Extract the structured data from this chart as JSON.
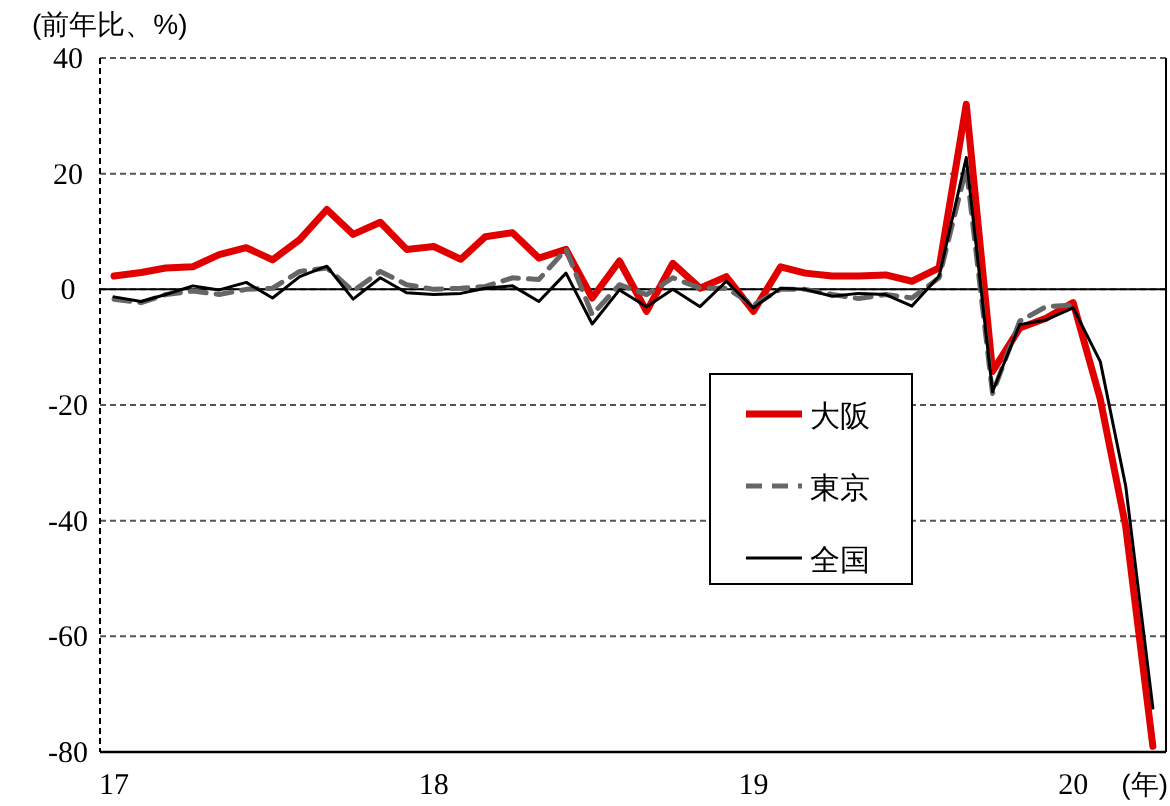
{
  "chart_data": {
    "type": "line",
    "ylabel": "(前年比、%)",
    "xlabel": "(年)",
    "x": [
      "2017-01",
      "2017-02",
      "2017-03",
      "2017-04",
      "2017-05",
      "2017-06",
      "2017-07",
      "2017-08",
      "2017-09",
      "2017-10",
      "2017-11",
      "2017-12",
      "2018-01",
      "2018-02",
      "2018-03",
      "2018-04",
      "2018-05",
      "2018-06",
      "2018-07",
      "2018-08",
      "2018-09",
      "2018-10",
      "2018-11",
      "2018-12",
      "2019-01",
      "2019-02",
      "2019-03",
      "2019-04",
      "2019-05",
      "2019-06",
      "2019-07",
      "2019-08",
      "2019-09",
      "2019-10",
      "2019-11",
      "2019-12",
      "2020-01",
      "2020-02",
      "2020-03",
      "2020-04"
    ],
    "series": [
      {
        "name": "大阪",
        "color": "#e00000",
        "line_style": "solid",
        "values": [
          2.3,
          2.9,
          3.7,
          3.9,
          6.0,
          7.2,
          5.1,
          8.6,
          13.8,
          9.5,
          11.6,
          6.9,
          7.4,
          5.2,
          9.1,
          9.8,
          5.4,
          6.9,
          -1.5,
          4.9,
          -3.8,
          4.5,
          0.2,
          2.2,
          -3.8,
          3.9,
          2.8,
          2.3,
          2.3,
          2.5,
          1.4,
          3.7,
          32.0,
          -14.2,
          -6.7,
          -5.0,
          -2.3,
          -19,
          -41,
          -79
        ]
      },
      {
        "name": "東京",
        "color": "#666666",
        "line_style": "dashed",
        "values": [
          -1.7,
          -2.3,
          -0.9,
          -0.3,
          -0.9,
          0,
          0.2,
          3.1,
          3.7,
          -0.3,
          3.1,
          0.8,
          0,
          0.2,
          0.5,
          2.0,
          1.7,
          6.9,
          -4.4,
          0.8,
          -0.9,
          2.0,
          0.2,
          0.2,
          -2.7,
          0,
          0,
          -0.9,
          -1.6,
          -0.9,
          -1.5,
          2.0,
          21,
          -18,
          -5.5,
          -3.0,
          -2.7,
          null,
          null,
          null
        ]
      },
      {
        "name": "全国",
        "color": "#000000",
        "line_style": "solid",
        "values": [
          -1.3,
          -2.1,
          -0.9,
          0.6,
          -0.1,
          1.2,
          -1.5,
          2.2,
          4.0,
          -1.7,
          2.0,
          -0.6,
          -0.9,
          -0.7,
          0.2,
          0.6,
          -2.1,
          2.8,
          -6.0,
          -0.1,
          -3.0,
          0,
          -3.0,
          1.4,
          -3.2,
          0.2,
          0,
          -1.2,
          -0.7,
          -0.9,
          -2.9,
          2.3,
          22.8,
          -17.7,
          -6.1,
          -5.3,
          -3.2,
          -12.5,
          -34,
          -72.4
        ]
      }
    ],
    "xlim": [
      "2016-12-16",
      "2020-04-16"
    ],
    "xticks": [
      {
        "value": "2017-01",
        "label": "17"
      },
      {
        "value": "2018-01",
        "label": "18"
      },
      {
        "value": "2019-01",
        "label": "19"
      },
      {
        "value": "2020-01",
        "label": "20"
      }
    ],
    "ylim": [
      -80,
      40
    ],
    "yticks": [
      -80,
      -60,
      -40,
      -20,
      0,
      20,
      40
    ],
    "grid": "y",
    "ref_lines": [
      {
        "axis": "y",
        "value": 0,
        "color": "#000000",
        "line_style": "solid"
      }
    ],
    "legend": "right"
  }
}
